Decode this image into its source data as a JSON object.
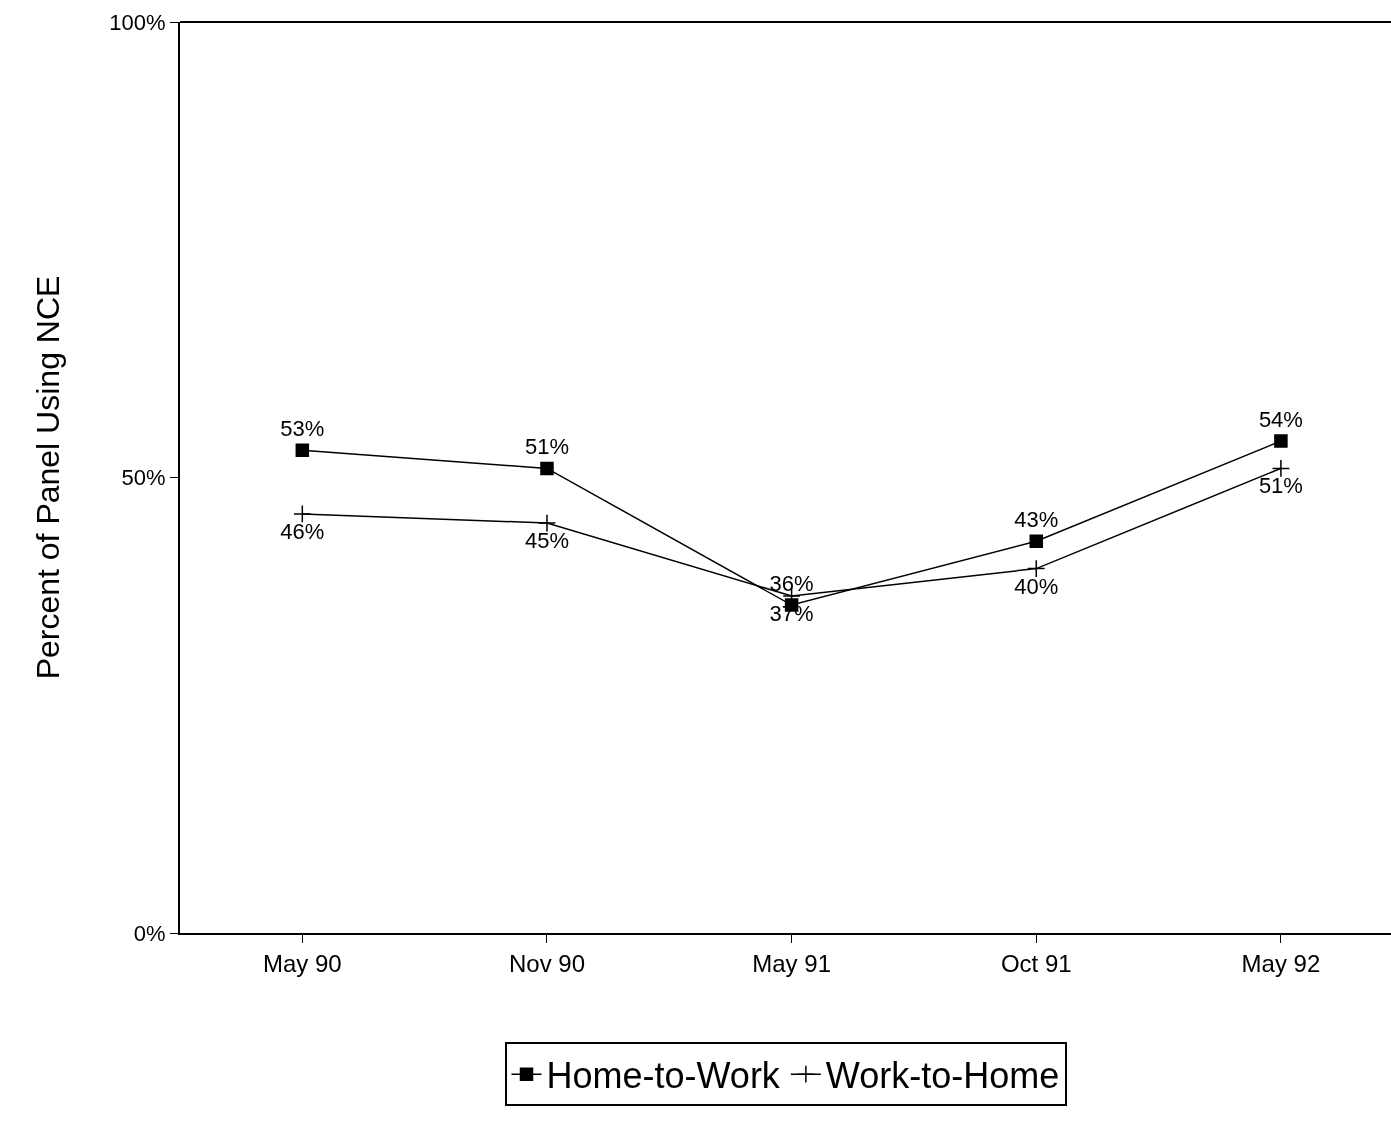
{
  "chart_data": {
    "type": "line",
    "ylabel": "Percent of Panel Using NCE",
    "categories": [
      "May 90",
      "Nov 90",
      "May 91",
      "Oct 91",
      "May 92"
    ],
    "series": [
      {
        "name": "Home-to-Work",
        "color": "#000000",
        "marker": "square",
        "values": [
          53,
          51,
          36,
          43,
          54
        ],
        "value_labels": [
          "53%",
          "51%",
          "36%",
          "43%",
          "54%"
        ]
      },
      {
        "name": "Work-to-Home",
        "color": "#000000",
        "marker": "cross",
        "values": [
          46,
          45,
          37,
          40,
          51
        ],
        "value_labels": [
          "46%",
          "45%",
          "37%",
          "40%",
          "51%"
        ]
      }
    ],
    "ylim": [
      0,
      100
    ],
    "yticks": [
      {
        "value": 0,
        "label": "0%"
      },
      {
        "value": 50,
        "label": "50%"
      },
      {
        "value": 100,
        "label": "100%"
      }
    ],
    "legend": "bottom",
    "line_style": "solid"
  }
}
